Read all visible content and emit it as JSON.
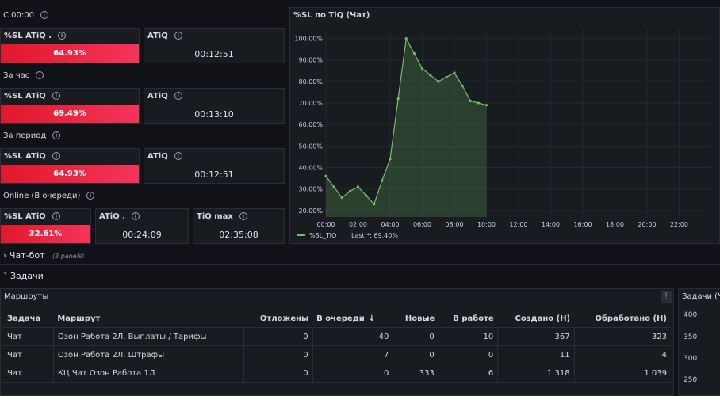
{
  "sections": {
    "since_midnight": "С 00:00",
    "per_hour": "За час",
    "per_period": "За период",
    "online": "Online (В очереди)"
  },
  "stats": {
    "s1_sl_title": "%SL ATiQ .",
    "s1_sl_value": "64.93%",
    "s1_atiq_title": "ATiQ",
    "s1_atiq_value": "00:12:51",
    "s2_sl_title": "%SL ATiQ",
    "s2_sl_value": "69.49%",
    "s2_atiq_title": "ATiQ",
    "s2_atiq_value": "00:13:10",
    "s3_sl_title": "%SL ATiQ",
    "s3_sl_value": "64.93%",
    "s3_atiq_title": "ATiQ",
    "s3_atiq_value": "00:12:51",
    "s4_sl_title": "%SL ATiQ",
    "s4_sl_value": "32.61%",
    "s4_atiq_title": "ATiQ .",
    "s4_atiq_value": "00:24:09",
    "s4_max_title": "TiQ max",
    "s4_max_value": "02:35:08"
  },
  "chart_data": {
    "type": "area",
    "title": "%SL по TiQ (Чат)",
    "x": [
      "00:00",
      "00:30",
      "01:00",
      "01:30",
      "02:00",
      "02:30",
      "03:00",
      "03:30",
      "04:00",
      "04:30",
      "05:00",
      "05:30",
      "06:00",
      "06:30",
      "07:00",
      "07:30",
      "08:00",
      "08:30",
      "09:00",
      "09:30",
      "10:00"
    ],
    "series": [
      {
        "name": "%SL_TiQ",
        "color": "#73bf69",
        "values": [
          36,
          31,
          26,
          29,
          31,
          27,
          23,
          34,
          44,
          72,
          100,
          93,
          86,
          83,
          80,
          82,
          84,
          78,
          71,
          70,
          69
        ]
      }
    ],
    "yticks": [
      "20.00%",
      "30.00%",
      "40.00%",
      "50.00%",
      "60.00%",
      "70.00%",
      "80.00%",
      "90.00%",
      "100.00%"
    ],
    "ylim": [
      17,
      105
    ],
    "xticks": [
      "00:00",
      "02:00",
      "04:00",
      "06:00",
      "08:00",
      "10:00",
      "12:00",
      "14:00",
      "16:00",
      "18:00",
      "20:00",
      "22:00"
    ],
    "xrange_hours": [
      0,
      24
    ],
    "legend": {
      "name": "%SL_TiQ",
      "last_label": "Last *: 69.40%"
    },
    "grid": true,
    "legend_placement": "bottom-left"
  },
  "rows": {
    "chatbot_title": "Чат-бот",
    "chatbot_sub": "(3 panels)",
    "tasks_title": "Задачи"
  },
  "routes": {
    "title": "Маршруты",
    "columns": [
      "Задача",
      "Маршрут",
      "Отложены",
      "В очереди",
      "Новые",
      "В работе",
      "Создано (Н)",
      "Обработано (Н)"
    ],
    "sort_indicator": "↓",
    "rows": [
      [
        "Чат",
        "Озон Работа 2Л. Выплаты / Тарифы",
        "0",
        "40",
        "0",
        "10",
        "367",
        "323"
      ],
      [
        "Чат",
        "Озон Работа 2Л. Штрафы",
        "0",
        "7",
        "0",
        "0",
        "11",
        "4"
      ],
      [
        "Чат",
        "КЦ Чат Озон Работа 1Л",
        "0",
        "0",
        "333",
        "6",
        "1 318",
        "1 039"
      ]
    ]
  },
  "tasks_panel": {
    "title": "Задачи (Ч",
    "yticks": [
      "400",
      "350",
      "300",
      "250"
    ]
  }
}
